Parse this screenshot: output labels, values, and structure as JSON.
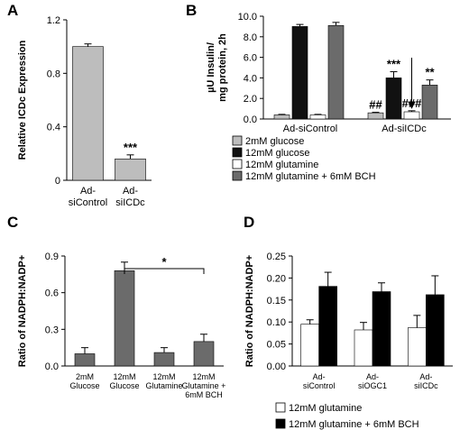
{
  "chart_data": [
    {
      "panel": "A",
      "type": "bar",
      "ylabel": "Relative ICDc Expression",
      "ylim": [
        0,
        1.2
      ],
      "yticks": [
        "0",
        "0.4",
        "0.8",
        "1.2"
      ],
      "categories": [
        "Ad-\nsiControl",
        "Ad-\nsiICDc"
      ],
      "values": [
        1.0,
        0.16
      ],
      "errors": [
        0.02,
        0.03
      ],
      "annotations": [
        "",
        "***"
      ],
      "color": "#bdbdbd"
    },
    {
      "panel": "B",
      "type": "bar",
      "ylabel": "µU Insulin/\nmg protein, 2h",
      "ylim": [
        0,
        10
      ],
      "yticks": [
        "0.0",
        "2.0",
        "4.0",
        "6.0",
        "8.0",
        "10.0"
      ],
      "categories": [
        "Ad-siControl",
        "Ad-siICDc"
      ],
      "series": [
        {
          "name": "2mM glucose",
          "color": "#bdbdbd",
          "values": [
            0.4,
            0.6
          ],
          "errors": [
            0.05,
            0.05
          ],
          "annotations": [
            "",
            "##"
          ]
        },
        {
          "name": "12mM glucose",
          "color": "#111111",
          "values": [
            9.0,
            4.0
          ],
          "errors": [
            0.2,
            0.6
          ],
          "annotations": [
            "",
            "***"
          ]
        },
        {
          "name": "12mM glutamine",
          "color": "#ffffff",
          "values": [
            0.4,
            0.7
          ],
          "errors": [
            0.05,
            0.1
          ],
          "annotations": [
            "",
            "###"
          ]
        },
        {
          "name": "12mM glutamine + 6mM BCH",
          "color": "#6b6b6b",
          "values": [
            9.1,
            3.3
          ],
          "errors": [
            0.3,
            0.5
          ],
          "annotations": [
            "",
            "**"
          ]
        }
      ],
      "legend_position": "bottom"
    },
    {
      "panel": "C",
      "type": "bar",
      "ylabel": "Ratio of NADPH:NADP+",
      "ylim": [
        0,
        0.9
      ],
      "yticks": [
        "0.0",
        "0.3",
        "0.6",
        "0.9"
      ],
      "categories": [
        "2mM\nGlucose",
        "12mM\nGlucose",
        "12mM\nGlutamine",
        "12mM\nGlutamine +\n6mM BCH"
      ],
      "values": [
        0.1,
        0.78,
        0.11,
        0.2
      ],
      "errors": [
        0.05,
        0.07,
        0.04,
        0.06
      ],
      "bracket": {
        "from": 1,
        "to": 3,
        "label": "*"
      },
      "color": "#6b6b6b"
    },
    {
      "panel": "D",
      "type": "bar",
      "ylabel": "Ratio of NADPH:NADP+",
      "ylim": [
        0,
        0.25
      ],
      "yticks": [
        "0.00",
        "0.05",
        "0.10",
        "0.15",
        "0.20",
        "0.25"
      ],
      "categories": [
        "Ad-\nsiControl",
        "Ad-\nsiOGC1",
        "Ad-\nsiICDc"
      ],
      "series": [
        {
          "name": "12mM glutamine",
          "color": "#ffffff",
          "values": [
            0.095,
            0.082,
            0.087
          ],
          "errors": [
            0.01,
            0.017,
            0.028
          ]
        },
        {
          "name": "12mM glutamine + 6mM BCH",
          "color": "#000000",
          "values": [
            0.181,
            0.169,
            0.162
          ],
          "errors": [
            0.032,
            0.02,
            0.043
          ]
        }
      ],
      "legend_position": "bottom"
    }
  ]
}
